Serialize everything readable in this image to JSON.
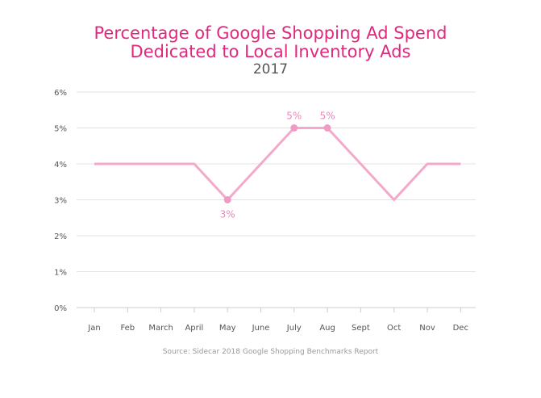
{
  "chart_data": {
    "type": "line",
    "title_line1": "Percentage of Google Shopping Ad Spend",
    "title_line2": "Dedicated to Local Inventory Ads",
    "subtitle": "2017",
    "categories": [
      "Jan",
      "Feb",
      "March",
      "April",
      "May",
      "June",
      "July",
      "Aug",
      "Sept",
      "Oct",
      "Nov",
      "Dec"
    ],
    "series": [
      {
        "values": [
          4,
          4,
          4,
          4,
          3,
          4,
          5,
          5,
          4,
          3,
          4,
          4
        ]
      }
    ],
    "ylim": [
      0,
      6
    ],
    "yticks": [
      "0%",
      "1%",
      "2%",
      "3%",
      "4%",
      "5%",
      "6%"
    ],
    "annotations": [
      {
        "index": 4,
        "text": "3%",
        "position": "below"
      },
      {
        "index": 6,
        "text": "5%",
        "position": "above"
      },
      {
        "index": 7,
        "text": "5%",
        "position": "above"
      }
    ],
    "grid": true,
    "line_color": "#f4a9cc",
    "marker_color": "#f09bc3",
    "title_color": "#e0287d",
    "source": "Source: Sidecar 2018 Google Shopping Benchmarks Report"
  }
}
